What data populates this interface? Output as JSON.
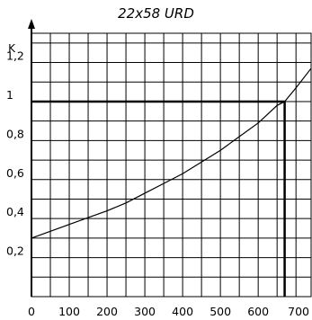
{
  "chart_data": {
    "type": "line",
    "title": "22x58 URD",
    "xlabel": "",
    "ylabel": "K",
    "xlim": [
      0,
      740
    ],
    "ylim": [
      0,
      1.35
    ],
    "x_ticks": [
      0,
      100,
      200,
      300,
      400,
      500,
      600,
      700
    ],
    "x_tick_labels": [
      "0",
      "100",
      "200",
      "300",
      "400",
      "500",
      "600",
      "700"
    ],
    "y_ticks": [
      0.2,
      0.4,
      0.6,
      0.8,
      1.0,
      1.2
    ],
    "y_tick_labels": [
      "0,2",
      "0,4",
      "0,6",
      "0,8",
      "1",
      "1,2"
    ],
    "grid": true,
    "series": [
      {
        "x": [
          0,
          50,
          100,
          150,
          200,
          250,
          300,
          350,
          400,
          450,
          500,
          550,
          600,
          650,
          670,
          700,
          740
        ],
        "values": [
          0.3,
          0.335,
          0.37,
          0.405,
          0.44,
          0.48,
          0.53,
          0.58,
          0.63,
          0.69,
          0.75,
          0.82,
          0.89,
          0.98,
          1.0,
          1.07,
          1.17
        ]
      }
    ],
    "reference_lines": [
      {
        "type": "horizontal",
        "y": 1.0,
        "x_to": 670
      },
      {
        "type": "vertical",
        "x": 670,
        "y_to": 1.0
      }
    ]
  }
}
